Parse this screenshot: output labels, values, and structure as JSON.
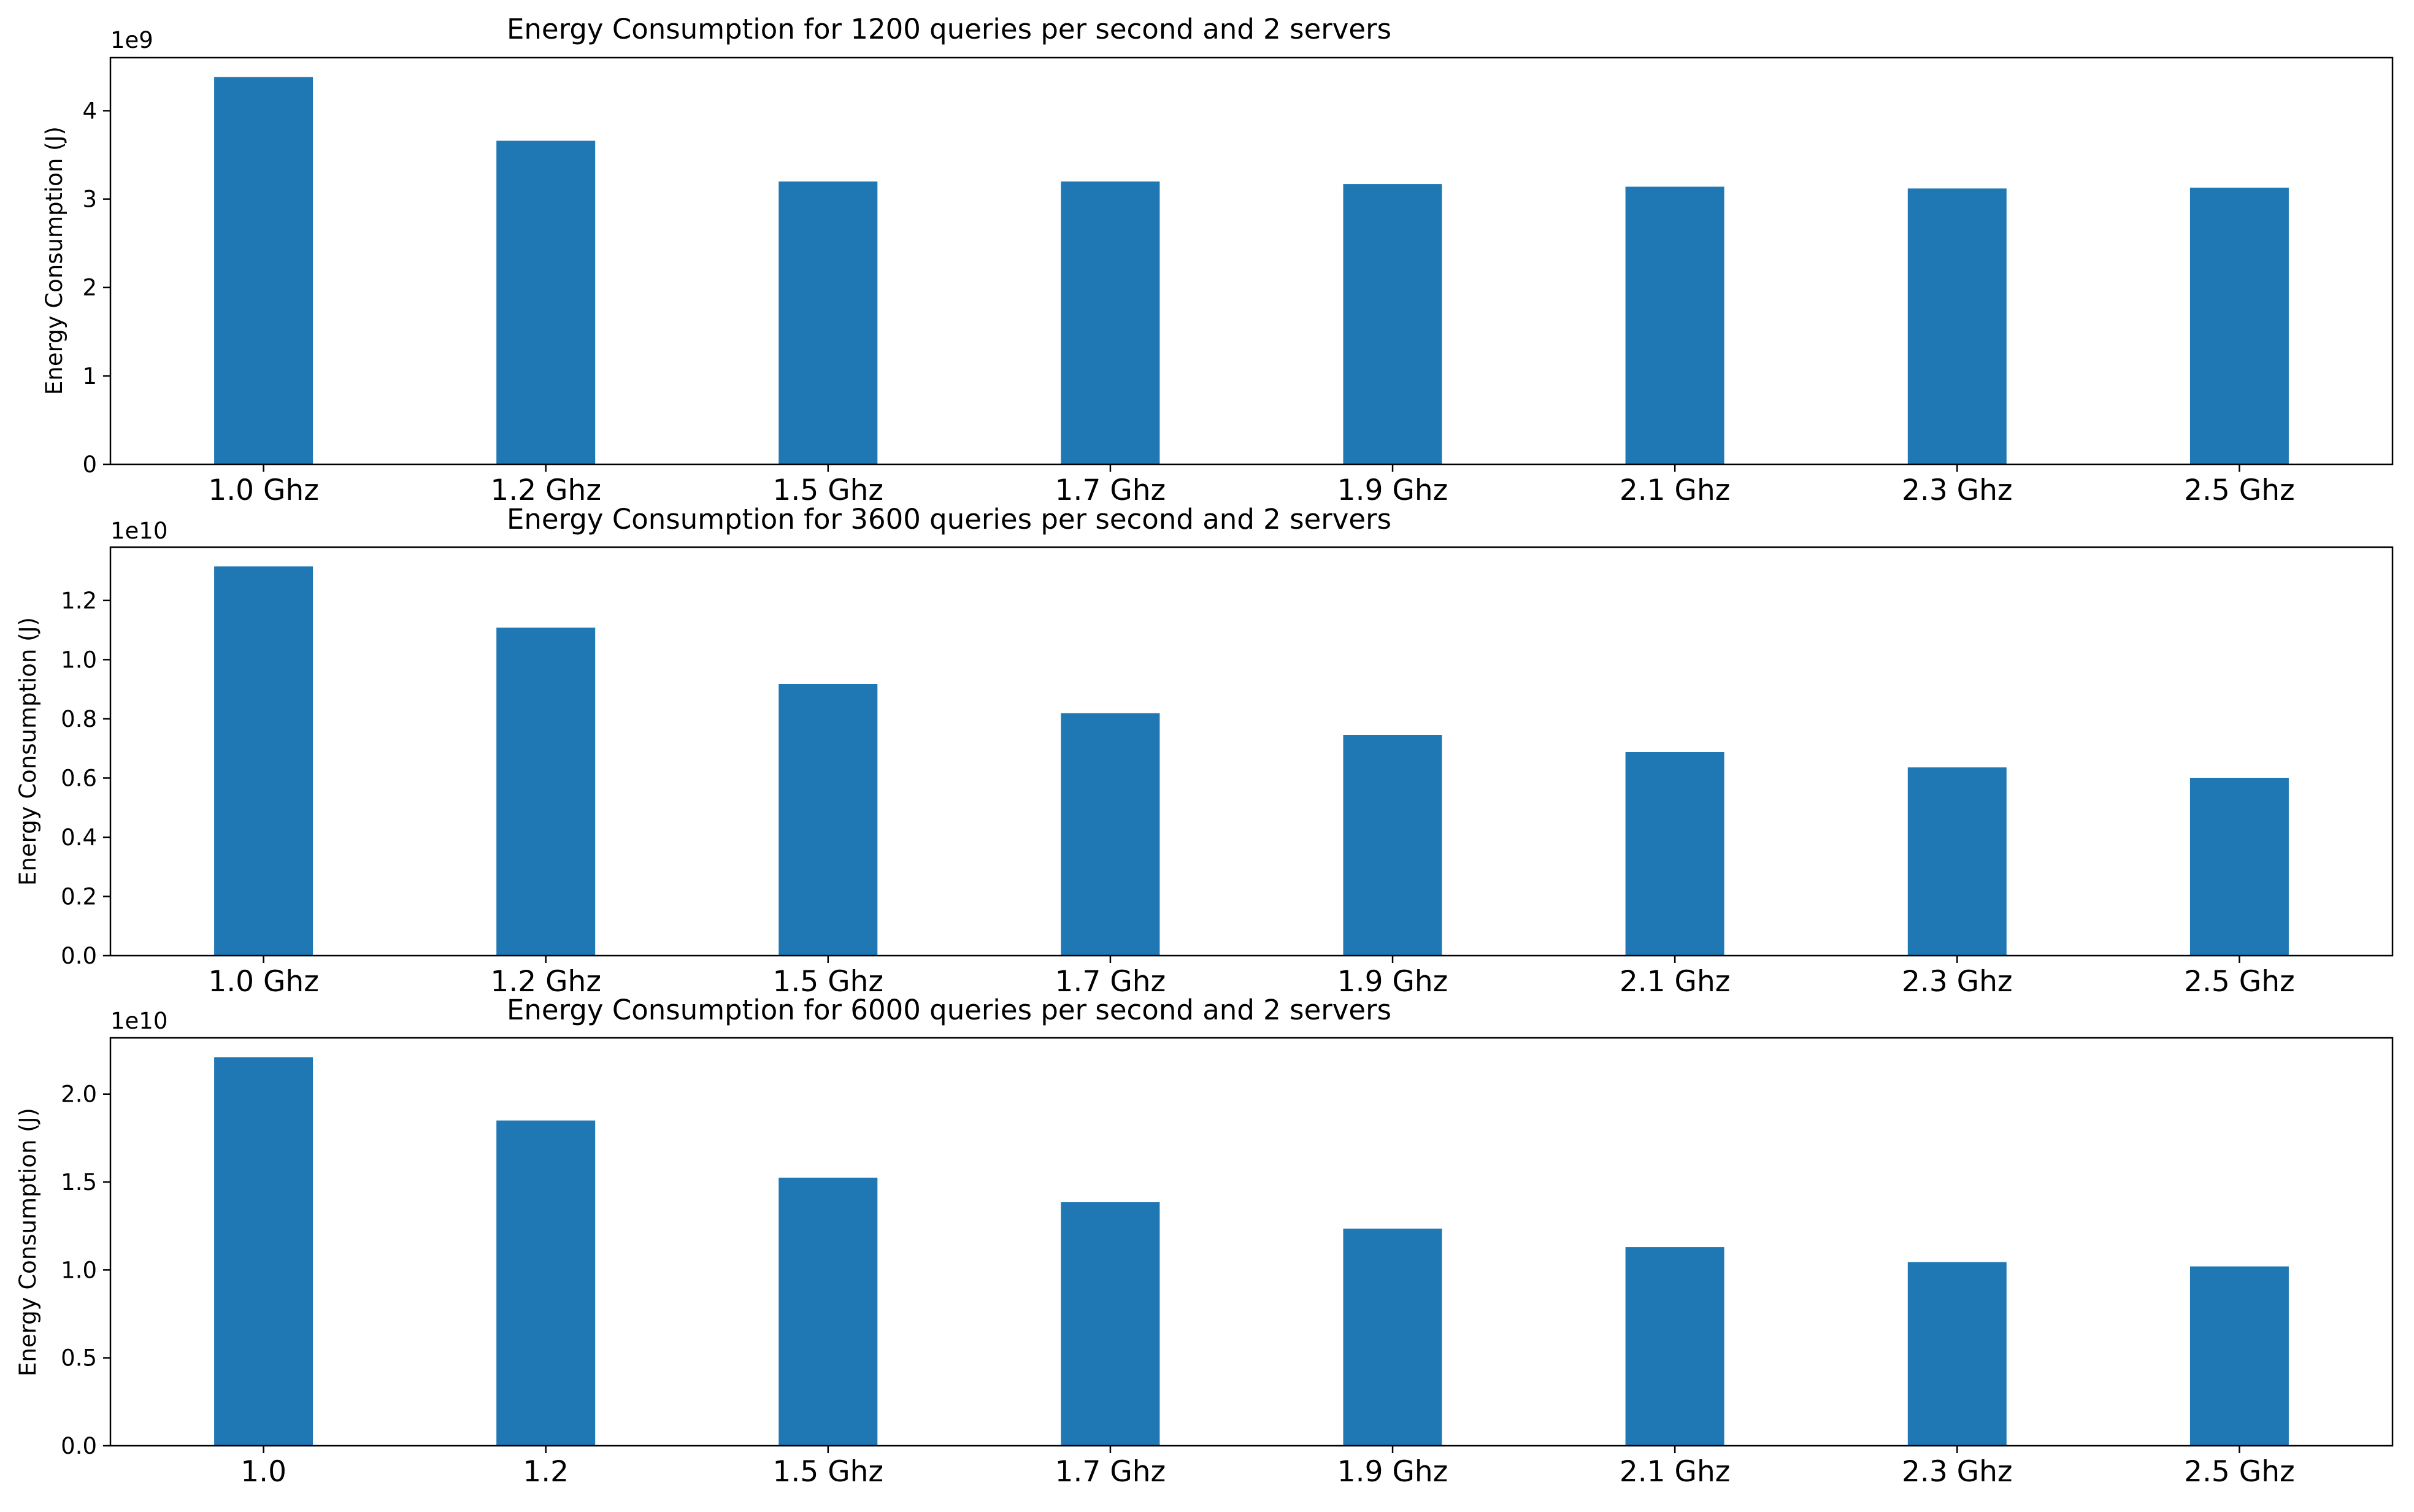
{
  "colors": {
    "bar": "#1f77b4",
    "axis": "#000000",
    "background": "#ffffff"
  },
  "chart_data": [
    {
      "type": "bar",
      "title": "Energy Consumption for 1200 queries per second and 2 servers",
      "ylabel": "Energy Consumption (J)",
      "xlabel": "",
      "offset_label": "1e9",
      "categories": [
        "1.0 Ghz",
        "1.2 Ghz",
        "1.5 Ghz",
        "1.7 Ghz",
        "1.9 Ghz",
        "2.1 Ghz",
        "2.3 Ghz",
        "2.5 Ghz"
      ],
      "values": [
        4.38,
        3.66,
        3.2,
        3.2,
        3.17,
        3.14,
        3.12,
        3.13
      ],
      "ylim": [
        0,
        4.6
      ],
      "yticks": [
        0,
        1,
        2,
        3,
        4
      ],
      "ytick_labels": [
        "0",
        "1",
        "2",
        "3",
        "4"
      ],
      "grid": false
    },
    {
      "type": "bar",
      "title": "Energy Consumption for 3600 queries per second and 2 servers",
      "ylabel": "Energy Consumption (J)",
      "xlabel": "",
      "offset_label": "1e10",
      "categories": [
        "1.0 Ghz",
        "1.2 Ghz",
        "1.5 Ghz",
        "1.7 Ghz",
        "1.9 Ghz",
        "2.1 Ghz",
        "2.3 Ghz",
        "2.5 Ghz"
      ],
      "values": [
        1.315,
        1.108,
        0.918,
        0.819,
        0.746,
        0.688,
        0.636,
        0.601
      ],
      "ylim": [
        0,
        1.38
      ],
      "yticks": [
        0,
        0.2,
        0.4,
        0.6,
        0.8,
        1.0,
        1.2
      ],
      "ytick_labels": [
        "0.0",
        "0.2",
        "0.4",
        "0.6",
        "0.8",
        "1.0",
        "1.2"
      ],
      "grid": false
    },
    {
      "type": "bar",
      "title": "Energy Consumption for 6000 queries per second and 2 servers",
      "ylabel": "Energy Consumption (J)",
      "xlabel": "",
      "offset_label": "1e10",
      "categories": [
        "1.0",
        "1.2",
        "1.5 Ghz",
        "1.7 Ghz",
        "1.9 Ghz",
        "2.1 Ghz",
        "2.3 Ghz",
        "2.5 Ghz"
      ],
      "values": [
        2.21,
        1.85,
        1.525,
        1.385,
        1.235,
        1.13,
        1.045,
        1.02
      ],
      "ylim": [
        0,
        2.32
      ],
      "yticks": [
        0,
        0.5,
        1.0,
        1.5,
        2.0
      ],
      "ytick_labels": [
        "0.0",
        "0.5",
        "1.0",
        "1.5",
        "2.0"
      ],
      "grid": false
    }
  ]
}
